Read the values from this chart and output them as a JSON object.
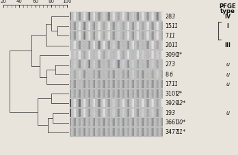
{
  "n_rows": 13,
  "row_labels_main": [
    "28",
    "15",
    "7",
    "20",
    "3090",
    "27",
    "8",
    "17",
    "3101",
    "3929",
    "19",
    "3661",
    "3477"
  ],
  "row_labels_italic": [
    "3",
    "11",
    "11",
    "11",
    "1*",
    "3",
    "6",
    "11",
    "2*",
    "12*",
    "3",
    "10*",
    "11*"
  ],
  "pfge_types": [
    "IV",
    "I",
    "",
    "III",
    "",
    "u",
    "u",
    "u",
    "",
    "",
    "u",
    "",
    ""
  ],
  "bg_color": "#e8e4dc",
  "gel_bg_color": "#c8c0b0",
  "scale_ticks": [
    20,
    40,
    60,
    80,
    100
  ],
  "dendro_lw": 0.7,
  "label_fs": 5.8,
  "header_fs": 6.2
}
